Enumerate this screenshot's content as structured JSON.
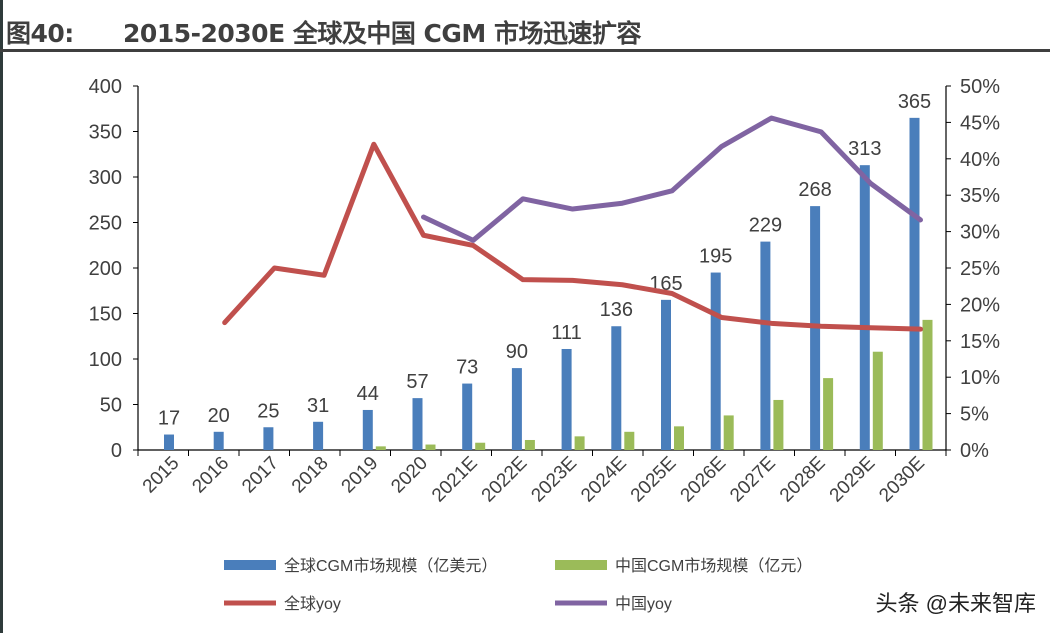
{
  "title": {
    "label": "图40:",
    "text": "2015-2030E 全球及中国 CGM 市场迅速扩容"
  },
  "watermark": "头条 @未来智库",
  "colors": {
    "global_bar": "#4a7ebb",
    "china_bar": "#9bbb59",
    "global_yoy": "#c0504d",
    "china_yoy": "#8064a2"
  },
  "chart_data": {
    "type": "bar+line",
    "categories": [
      "2015",
      "2016",
      "2017",
      "2018",
      "2019",
      "2020",
      "2021E",
      "2022E",
      "2023E",
      "2024E",
      "2025E",
      "2026E",
      "2027E",
      "2028E",
      "2029E",
      "2030E"
    ],
    "y_left": {
      "range": [
        0,
        400
      ],
      "ticks": [
        0,
        50,
        100,
        150,
        200,
        250,
        300,
        350,
        400
      ]
    },
    "y_right": {
      "range": [
        0,
        50
      ],
      "ticks": [
        "0%",
        "5%",
        "10%",
        "15%",
        "20%",
        "25%",
        "30%",
        "35%",
        "40%",
        "45%",
        "50%"
      ]
    },
    "grid": false,
    "legend_placement": "bottom",
    "series": [
      {
        "name": "全球CGM市场规模（亿美元）",
        "type": "bar",
        "axis": "left",
        "values": [
          17,
          20,
          25,
          31,
          44,
          57,
          73,
          90,
          111,
          136,
          165,
          195,
          229,
          268,
          313,
          365
        ],
        "labels": true
      },
      {
        "name": "中国CGM市场规模（亿元）",
        "type": "bar",
        "axis": "left",
        "values": [
          null,
          null,
          null,
          null,
          4,
          6,
          8,
          11,
          15,
          20,
          26,
          38,
          55,
          79,
          108,
          143
        ]
      },
      {
        "name": "全球yoy",
        "type": "line",
        "axis": "right",
        "values": [
          null,
          17.5,
          25.0,
          24.0,
          42.0,
          29.5,
          28.1,
          23.4,
          23.3,
          22.7,
          21.5,
          18.2,
          17.4,
          17.0,
          16.8,
          16.6
        ]
      },
      {
        "name": "中国yoy",
        "type": "line",
        "axis": "right",
        "values": [
          null,
          null,
          null,
          null,
          null,
          32.0,
          28.8,
          34.5,
          33.1,
          33.9,
          35.6,
          41.7,
          45.6,
          43.7,
          36.6,
          31.6
        ]
      }
    ]
  }
}
